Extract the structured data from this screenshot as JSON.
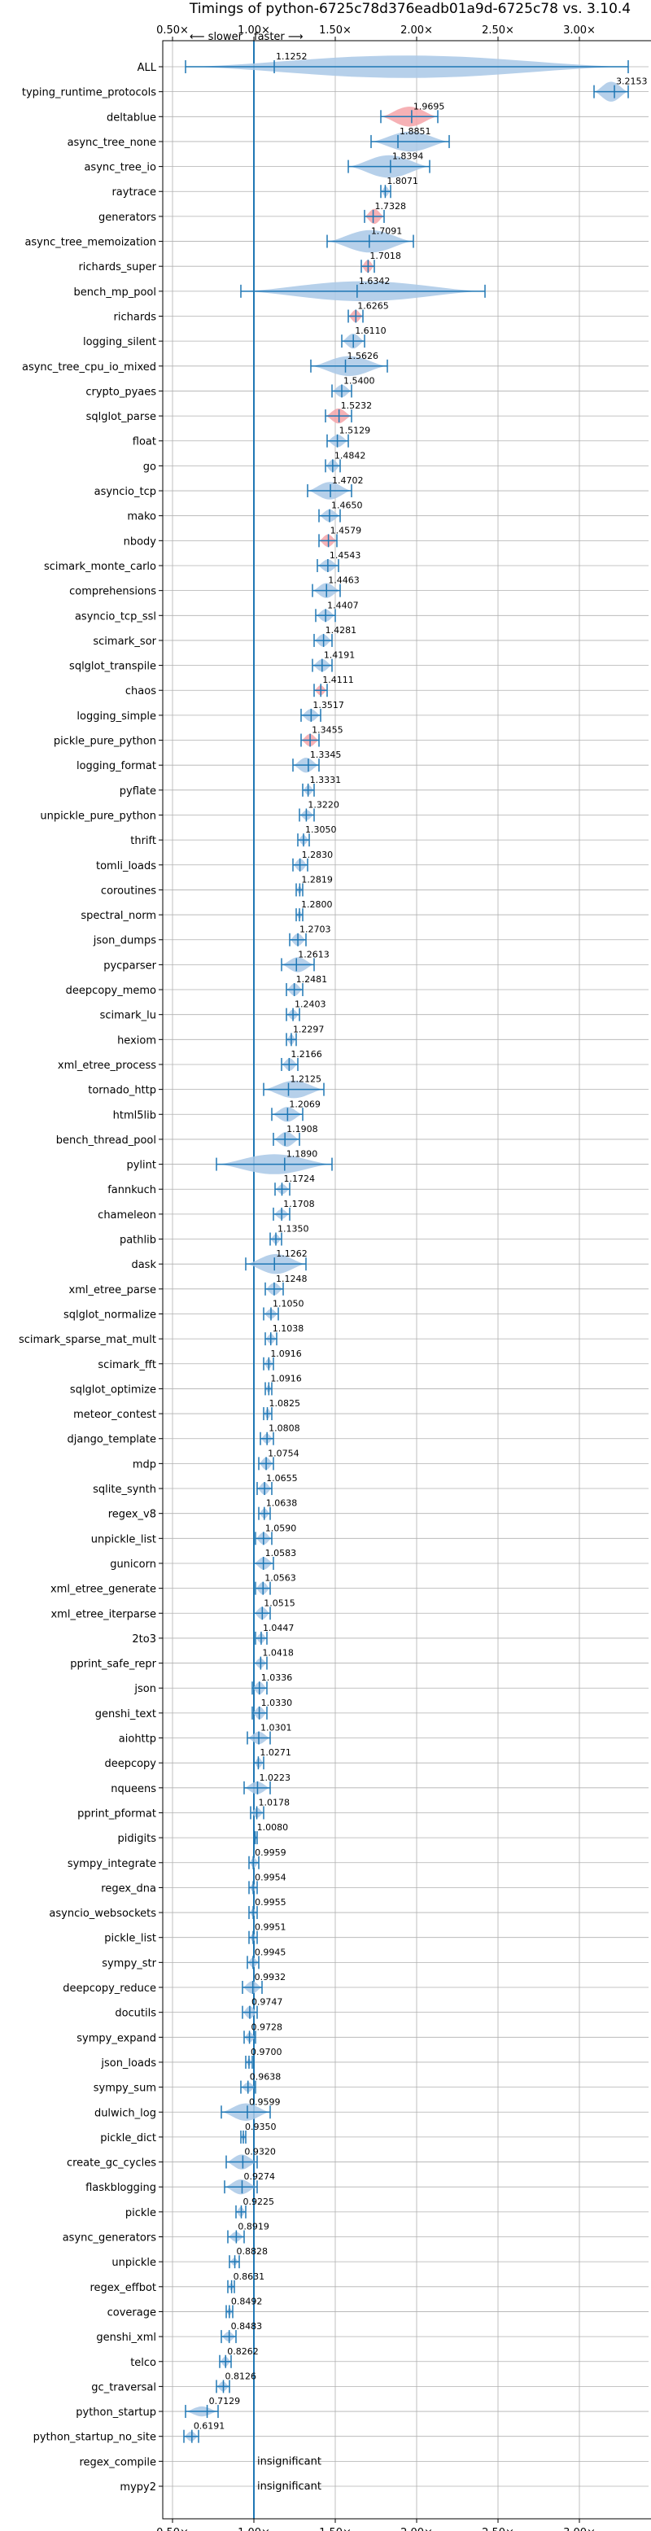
{
  "chart_data": {
    "type": "violin",
    "title": "Timings of python-6725c78d376eadb01a9d-6725c78 vs. 3.10.4",
    "xlim": [
      0.45,
      3.25
    ],
    "x_ticks": [
      0.5,
      1.0,
      1.5,
      2.0,
      2.5,
      3.0
    ],
    "x_tick_labels": [
      "0.50×",
      "1.00×",
      "1.50×",
      "2.00×",
      "2.50×",
      "3.00×"
    ],
    "slower_label": "⟵ slower",
    "faster_label": "faster ⟶",
    "baseline": 1.0,
    "grid": true,
    "benchmarks": [
      {
        "name": "ALL",
        "value": 1.1252,
        "min": 0.58,
        "max": 3.3,
        "w": 0.9,
        "hl": false
      },
      {
        "name": "typing_runtime_protocols",
        "value": 3.2153,
        "min": 3.09,
        "max": 3.3,
        "w": 0.8,
        "hl": false
      },
      {
        "name": "deltablue",
        "value": 1.9695,
        "min": 1.78,
        "max": 2.13,
        "w": 0.8,
        "hl": true
      },
      {
        "name": "async_tree_none",
        "value": 1.8851,
        "min": 1.72,
        "max": 2.2,
        "w": 0.8,
        "hl": false
      },
      {
        "name": "async_tree_io",
        "value": 1.8394,
        "min": 1.58,
        "max": 2.08,
        "w": 0.9,
        "hl": false
      },
      {
        "name": "raytrace",
        "value": 1.8071,
        "min": 1.78,
        "max": 1.84,
        "w": 0.4,
        "hl": false
      },
      {
        "name": "generators",
        "value": 1.7328,
        "min": 1.68,
        "max": 1.8,
        "w": 0.6,
        "hl": true
      },
      {
        "name": "async_tree_memoization",
        "value": 1.7091,
        "min": 1.45,
        "max": 1.98,
        "w": 0.9,
        "hl": false
      },
      {
        "name": "richards_super",
        "value": 1.7018,
        "min": 1.66,
        "max": 1.74,
        "w": 0.5,
        "hl": true
      },
      {
        "name": "bench_mp_pool",
        "value": 1.6342,
        "min": 0.92,
        "max": 2.42,
        "w": 0.8,
        "hl": false
      },
      {
        "name": "richards",
        "value": 1.6265,
        "min": 1.58,
        "max": 1.67,
        "w": 0.5,
        "hl": true
      },
      {
        "name": "logging_silent",
        "value": 1.611,
        "min": 1.54,
        "max": 1.68,
        "w": 0.6,
        "hl": false
      },
      {
        "name": "async_tree_cpu_io_mixed",
        "value": 1.5626,
        "min": 1.35,
        "max": 1.82,
        "w": 0.8,
        "hl": false
      },
      {
        "name": "crypto_pyaes",
        "value": 1.54,
        "min": 1.48,
        "max": 1.6,
        "w": 0.5,
        "hl": false
      },
      {
        "name": "sqlglot_parse",
        "value": 1.5232,
        "min": 1.44,
        "max": 1.6,
        "w": 0.6,
        "hl": true
      },
      {
        "name": "float",
        "value": 1.5129,
        "min": 1.45,
        "max": 1.58,
        "w": 0.5,
        "hl": false
      },
      {
        "name": "go",
        "value": 1.4842,
        "min": 1.44,
        "max": 1.53,
        "w": 0.5,
        "hl": false
      },
      {
        "name": "asyncio_tcp",
        "value": 1.4702,
        "min": 1.33,
        "max": 1.6,
        "w": 0.7,
        "hl": false
      },
      {
        "name": "mako",
        "value": 1.465,
        "min": 1.4,
        "max": 1.53,
        "w": 0.5,
        "hl": false
      },
      {
        "name": "nbody",
        "value": 1.4579,
        "min": 1.4,
        "max": 1.51,
        "w": 0.5,
        "hl": true
      },
      {
        "name": "scimark_monte_carlo",
        "value": 1.4543,
        "min": 1.39,
        "max": 1.52,
        "w": 0.5,
        "hl": false
      },
      {
        "name": "comprehensions",
        "value": 1.4463,
        "min": 1.36,
        "max": 1.53,
        "w": 0.6,
        "hl": false
      },
      {
        "name": "asyncio_tcp_ssl",
        "value": 1.4407,
        "min": 1.38,
        "max": 1.5,
        "w": 0.5,
        "hl": false
      },
      {
        "name": "scimark_sor",
        "value": 1.4281,
        "min": 1.37,
        "max": 1.48,
        "w": 0.5,
        "hl": false
      },
      {
        "name": "sqlglot_transpile",
        "value": 1.4191,
        "min": 1.36,
        "max": 1.48,
        "w": 0.5,
        "hl": false
      },
      {
        "name": "chaos",
        "value": 1.4111,
        "min": 1.37,
        "max": 1.45,
        "w": 0.4,
        "hl": true
      },
      {
        "name": "logging_simple",
        "value": 1.3517,
        "min": 1.29,
        "max": 1.41,
        "w": 0.5,
        "hl": false
      },
      {
        "name": "pickle_pure_python",
        "value": 1.3455,
        "min": 1.29,
        "max": 1.4,
        "w": 0.5,
        "hl": true
      },
      {
        "name": "logging_format",
        "value": 1.3345,
        "min": 1.24,
        "max": 1.4,
        "w": 0.6,
        "hl": false
      },
      {
        "name": "pyflate",
        "value": 1.3331,
        "min": 1.3,
        "max": 1.37,
        "w": 0.4,
        "hl": false
      },
      {
        "name": "unpickle_pure_python",
        "value": 1.322,
        "min": 1.28,
        "max": 1.37,
        "w": 0.4,
        "hl": false
      },
      {
        "name": "thrift",
        "value": 1.305,
        "min": 1.27,
        "max": 1.34,
        "w": 0.4,
        "hl": false
      },
      {
        "name": "tomli_loads",
        "value": 1.283,
        "min": 1.24,
        "max": 1.33,
        "w": 0.5,
        "hl": false
      },
      {
        "name": "coroutines",
        "value": 1.2819,
        "min": 1.26,
        "max": 1.3,
        "w": 0.3,
        "hl": false
      },
      {
        "name": "spectral_norm",
        "value": 1.28,
        "min": 1.26,
        "max": 1.3,
        "w": 0.3,
        "hl": false
      },
      {
        "name": "json_dumps",
        "value": 1.2703,
        "min": 1.22,
        "max": 1.32,
        "w": 0.5,
        "hl": false
      },
      {
        "name": "pycparser",
        "value": 1.2613,
        "min": 1.17,
        "max": 1.37,
        "w": 0.6,
        "hl": false
      },
      {
        "name": "deepcopy_memo",
        "value": 1.2481,
        "min": 1.2,
        "max": 1.3,
        "w": 0.5,
        "hl": false
      },
      {
        "name": "scimark_lu",
        "value": 1.2403,
        "min": 1.2,
        "max": 1.28,
        "w": 0.4,
        "hl": false
      },
      {
        "name": "hexiom",
        "value": 1.2297,
        "min": 1.2,
        "max": 1.26,
        "w": 0.4,
        "hl": false
      },
      {
        "name": "xml_etree_process",
        "value": 1.2166,
        "min": 1.17,
        "max": 1.27,
        "w": 0.5,
        "hl": false
      },
      {
        "name": "tornado_http",
        "value": 1.2125,
        "min": 1.06,
        "max": 1.43,
        "w": 0.7,
        "hl": false
      },
      {
        "name": "html5lib",
        "value": 1.2069,
        "min": 1.11,
        "max": 1.3,
        "w": 0.6,
        "hl": false
      },
      {
        "name": "bench_thread_pool",
        "value": 1.1908,
        "min": 1.12,
        "max": 1.28,
        "w": 0.6,
        "hl": false
      },
      {
        "name": "pylint",
        "value": 1.189,
        "min": 0.77,
        "max": 1.48,
        "w": 0.8,
        "hl": false
      },
      {
        "name": "fannkuch",
        "value": 1.1724,
        "min": 1.13,
        "max": 1.22,
        "w": 0.4,
        "hl": false
      },
      {
        "name": "chameleon",
        "value": 1.1708,
        "min": 1.12,
        "max": 1.22,
        "w": 0.4,
        "hl": false
      },
      {
        "name": "pathlib",
        "value": 1.135,
        "min": 1.1,
        "max": 1.17,
        "w": 0.4,
        "hl": false
      },
      {
        "name": "dask",
        "value": 1.1262,
        "min": 0.95,
        "max": 1.32,
        "w": 0.8,
        "hl": false
      },
      {
        "name": "xml_etree_parse",
        "value": 1.1248,
        "min": 1.07,
        "max": 1.18,
        "w": 0.5,
        "hl": false
      },
      {
        "name": "sqlglot_normalize",
        "value": 1.105,
        "min": 1.06,
        "max": 1.15,
        "w": 0.4,
        "hl": false
      },
      {
        "name": "scimark_sparse_mat_mult",
        "value": 1.1038,
        "min": 1.07,
        "max": 1.14,
        "w": 0.4,
        "hl": false
      },
      {
        "name": "scimark_fft",
        "value": 1.0916,
        "min": 1.06,
        "max": 1.12,
        "w": 0.4,
        "hl": false
      },
      {
        "name": "sqlglot_optimize",
        "value": 1.0916,
        "min": 1.07,
        "max": 1.11,
        "w": 0.3,
        "hl": false
      },
      {
        "name": "meteor_contest",
        "value": 1.0825,
        "min": 1.06,
        "max": 1.11,
        "w": 0.4,
        "hl": false
      },
      {
        "name": "django_template",
        "value": 1.0808,
        "min": 1.04,
        "max": 1.12,
        "w": 0.4,
        "hl": false
      },
      {
        "name": "mdp",
        "value": 1.0754,
        "min": 1.03,
        "max": 1.12,
        "w": 0.5,
        "hl": false
      },
      {
        "name": "sqlite_synth",
        "value": 1.0655,
        "min": 1.02,
        "max": 1.11,
        "w": 0.5,
        "hl": false
      },
      {
        "name": "regex_v8",
        "value": 1.0638,
        "min": 1.03,
        "max": 1.1,
        "w": 0.4,
        "hl": false
      },
      {
        "name": "unpickle_list",
        "value": 1.059,
        "min": 1.01,
        "max": 1.11,
        "w": 0.5,
        "hl": false
      },
      {
        "name": "gunicorn",
        "value": 1.0583,
        "min": 1.0,
        "max": 1.12,
        "w": 0.5,
        "hl": false
      },
      {
        "name": "xml_etree_generate",
        "value": 1.0563,
        "min": 1.01,
        "max": 1.1,
        "w": 0.5,
        "hl": false
      },
      {
        "name": "xml_etree_iterparse",
        "value": 1.0515,
        "min": 1.0,
        "max": 1.1,
        "w": 0.5,
        "hl": false
      },
      {
        "name": "2to3",
        "value": 1.0447,
        "min": 1.01,
        "max": 1.08,
        "w": 0.4,
        "hl": false
      },
      {
        "name": "pprint_safe_repr",
        "value": 1.0418,
        "min": 1.0,
        "max": 1.08,
        "w": 0.4,
        "hl": false
      },
      {
        "name": "json",
        "value": 1.0336,
        "min": 0.99,
        "max": 1.08,
        "w": 0.5,
        "hl": false
      },
      {
        "name": "genshi_text",
        "value": 1.033,
        "min": 0.99,
        "max": 1.08,
        "w": 0.5,
        "hl": false
      },
      {
        "name": "aiohttp",
        "value": 1.0301,
        "min": 0.96,
        "max": 1.1,
        "w": 0.5,
        "hl": false
      },
      {
        "name": "deepcopy",
        "value": 1.0271,
        "min": 1.0,
        "max": 1.06,
        "w": 0.4,
        "hl": false
      },
      {
        "name": "nqueens",
        "value": 1.0223,
        "min": 0.94,
        "max": 1.1,
        "w": 0.5,
        "hl": false
      },
      {
        "name": "pprint_pformat",
        "value": 1.0178,
        "min": 0.98,
        "max": 1.06,
        "w": 0.4,
        "hl": false
      },
      {
        "name": "pidigits",
        "value": 1.008,
        "min": 1.0,
        "max": 1.02,
        "w": 0.2,
        "hl": false
      },
      {
        "name": "sympy_integrate",
        "value": 0.9959,
        "min": 0.97,
        "max": 1.03,
        "w": 0.4,
        "hl": false
      },
      {
        "name": "regex_dna",
        "value": 0.9954,
        "min": 0.97,
        "max": 1.02,
        "w": 0.3,
        "hl": false
      },
      {
        "name": "asyncio_websockets",
        "value": 0.9955,
        "min": 0.97,
        "max": 1.02,
        "w": 0.3,
        "hl": false
      },
      {
        "name": "pickle_list",
        "value": 0.9951,
        "min": 0.97,
        "max": 1.02,
        "w": 0.3,
        "hl": false
      },
      {
        "name": "sympy_str",
        "value": 0.9945,
        "min": 0.96,
        "max": 1.03,
        "w": 0.4,
        "hl": false
      },
      {
        "name": "deepcopy_reduce",
        "value": 0.9932,
        "min": 0.93,
        "max": 1.05,
        "w": 0.5,
        "hl": false
      },
      {
        "name": "docutils",
        "value": 0.9747,
        "min": 0.93,
        "max": 1.02,
        "w": 0.5,
        "hl": false
      },
      {
        "name": "sympy_expand",
        "value": 0.9728,
        "min": 0.94,
        "max": 1.01,
        "w": 0.4,
        "hl": false
      },
      {
        "name": "json_loads",
        "value": 0.97,
        "min": 0.95,
        "max": 0.99,
        "w": 0.3,
        "hl": false
      },
      {
        "name": "sympy_sum",
        "value": 0.9638,
        "min": 0.92,
        "max": 1.01,
        "w": 0.4,
        "hl": false
      },
      {
        "name": "dulwich_log",
        "value": 0.9599,
        "min": 0.8,
        "max": 1.1,
        "w": 0.7,
        "hl": false
      },
      {
        "name": "pickle_dict",
        "value": 0.935,
        "min": 0.92,
        "max": 0.95,
        "w": 0.3,
        "hl": false
      },
      {
        "name": "create_gc_cycles",
        "value": 0.932,
        "min": 0.83,
        "max": 1.02,
        "w": 0.6,
        "hl": false
      },
      {
        "name": "flaskblogging",
        "value": 0.9274,
        "min": 0.82,
        "max": 1.02,
        "w": 0.6,
        "hl": false
      },
      {
        "name": "pickle",
        "value": 0.9225,
        "min": 0.89,
        "max": 0.95,
        "w": 0.4,
        "hl": false
      },
      {
        "name": "async_generators",
        "value": 0.8919,
        "min": 0.84,
        "max": 0.94,
        "w": 0.4,
        "hl": false
      },
      {
        "name": "unpickle",
        "value": 0.8828,
        "min": 0.85,
        "max": 0.91,
        "w": 0.3,
        "hl": false
      },
      {
        "name": "regex_effbot",
        "value": 0.8631,
        "min": 0.84,
        "max": 0.88,
        "w": 0.3,
        "hl": false
      },
      {
        "name": "coverage",
        "value": 0.8492,
        "min": 0.83,
        "max": 0.87,
        "w": 0.3,
        "hl": false
      },
      {
        "name": "genshi_xml",
        "value": 0.8483,
        "min": 0.8,
        "max": 0.89,
        "w": 0.4,
        "hl": false
      },
      {
        "name": "telco",
        "value": 0.8262,
        "min": 0.79,
        "max": 0.86,
        "w": 0.4,
        "hl": false
      },
      {
        "name": "gc_traversal",
        "value": 0.8126,
        "min": 0.77,
        "max": 0.85,
        "w": 0.4,
        "hl": false
      },
      {
        "name": "python_startup",
        "value": 0.7129,
        "min": 0.58,
        "max": 0.78,
        "w": 0.4,
        "hl": false
      },
      {
        "name": "python_startup_no_site",
        "value": 0.6191,
        "min": 0.57,
        "max": 0.66,
        "w": 0.4,
        "hl": false
      },
      {
        "name": "regex_compile",
        "value": null,
        "note": "insignificant"
      },
      {
        "name": "mypy2",
        "value": null,
        "note": "insignificant"
      }
    ]
  }
}
